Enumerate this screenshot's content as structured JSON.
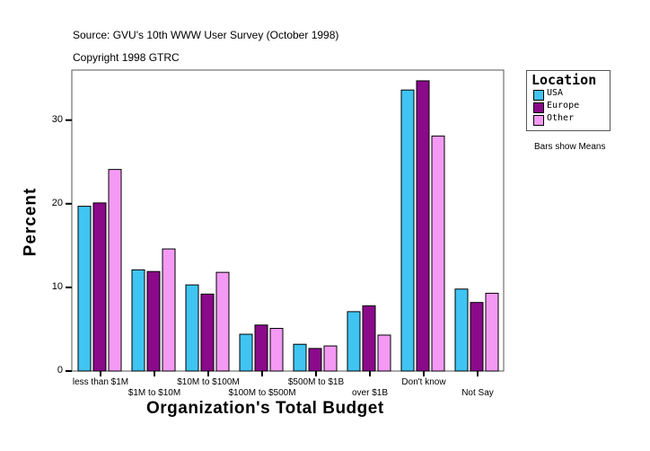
{
  "chart_data": {
    "type": "bar",
    "title": "Source: GVU's 10th WWW User Survey (October 1998)",
    "subtitle": "Copyright 1998 GTRC",
    "xlabel": "Organization's Total Budget",
    "ylabel": "Percent",
    "ylim": [
      0,
      36
    ],
    "yticks": [
      0,
      10,
      20,
      30
    ],
    "grid": false,
    "legend": {
      "title": "Location",
      "position": "right"
    },
    "note": "Bars show Means",
    "categories": [
      "less than $1M",
      "$1M to $10M",
      "$10M to $100M",
      "$100M to $500M",
      "$500M to $1B",
      "over $1B",
      "Don't know",
      "Not Say"
    ],
    "series": [
      {
        "name": "USA",
        "color": "#40c4f2",
        "values": [
          19.7,
          12.1,
          10.3,
          4.4,
          3.2,
          7.1,
          33.6,
          9.8
        ]
      },
      {
        "name": "Europe",
        "color": "#8a0a8a",
        "values": [
          20.1,
          11.9,
          9.2,
          5.5,
          2.7,
          7.8,
          34.7,
          8.2
        ]
      },
      {
        "name": "Other",
        "color": "#f49af4",
        "values": [
          24.1,
          14.6,
          11.8,
          5.1,
          3.0,
          4.3,
          28.1,
          9.3
        ]
      }
    ]
  }
}
